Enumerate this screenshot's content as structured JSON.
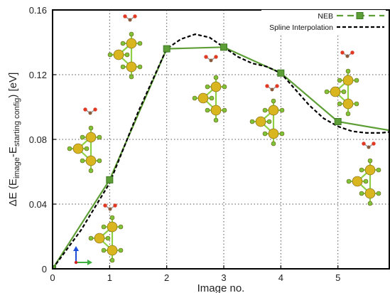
{
  "chart_data": {
    "type": "line",
    "xlabel": "Image no.",
    "ylabel": {
      "prefix": "ΔE (E",
      "sub1": "image",
      "mid": "-E",
      "sub2": "starting config",
      "suffix": ") [eV]"
    },
    "xlim": [
      0,
      5.9
    ],
    "ylim": [
      0,
      0.16
    ],
    "x_ticks": [
      "0",
      "1",
      "2",
      "3",
      "4",
      "5"
    ],
    "y_ticks": [
      "0",
      "0.04",
      "0.08",
      "0.12",
      "0.16"
    ],
    "grid": "dotted",
    "legend_position": "top-right",
    "series": [
      {
        "name": "NEB",
        "style": "solid line with square markers",
        "color": "#5e9e36",
        "marker_color": "#3f7a24",
        "x": [
          0,
          1,
          2,
          3,
          4,
          5,
          6
        ],
        "y": [
          0.0,
          0.055,
          0.136,
          0.137,
          0.121,
          0.091,
          0.085
        ]
      },
      {
        "name": "Spline Interpolation",
        "style": "dashed",
        "color": "#000000",
        "x": [
          0,
          0.5,
          1,
          1.5,
          2,
          2.25,
          2.5,
          2.75,
          3,
          3.25,
          3.5,
          3.75,
          4,
          4.25,
          4.5,
          4.75,
          5,
          5.25,
          5.5,
          5.75,
          6
        ],
        "y": [
          0.0,
          0.024,
          0.053,
          0.097,
          0.136,
          0.142,
          0.145,
          0.143,
          0.137,
          0.131,
          0.127,
          0.125,
          0.121,
          0.111,
          0.101,
          0.093,
          0.088,
          0.085,
          0.084,
          0.084,
          0.085
        ]
      }
    ]
  },
  "colors": {
    "sulfur": "#d9b520",
    "bond": "#8fcf43",
    "light_atom": "#7dc43a",
    "oxygen": "#e03a24",
    "carbon": "#8a5a3c",
    "axis_z": "#1f4fd9",
    "axis_x": "#3fb040"
  }
}
